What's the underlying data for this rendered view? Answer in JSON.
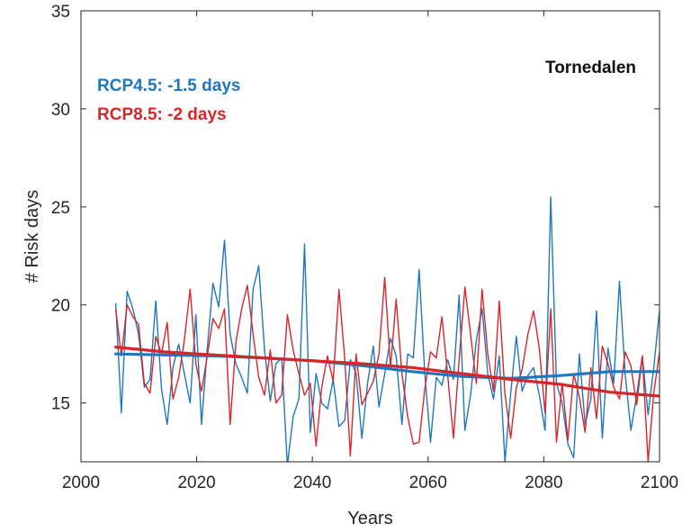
{
  "chart_data": {
    "type": "line",
    "title": "",
    "xlabel": "Years",
    "ylabel": "# Risk days",
    "xlim": [
      2000,
      2100
    ],
    "ylim": [
      12,
      35
    ],
    "xticks": [
      2000,
      2020,
      2040,
      2060,
      2080,
      2100
    ],
    "yticks": [
      15,
      20,
      25,
      30,
      35
    ],
    "grid": false,
    "x_start": 2006,
    "x_end": 2100,
    "annotations": {
      "region": "Tornedalen",
      "rcp45_label": "RCP4.5: -1.5 days",
      "rcp85_label": "RCP8.5: -2 days"
    },
    "colors": {
      "rcp45": "#1f77c0",
      "rcp85": "#d62728",
      "axis": "#262626"
    },
    "series": [
      {
        "key": "rcp45",
        "values": [
          20.1,
          14.5,
          20.7,
          19.8,
          18.5,
          15.8,
          16.2,
          20.2,
          15.7,
          13.9,
          16.8,
          18.0,
          16.5,
          15.0,
          19.5,
          13.9,
          17.8,
          21.1,
          19.9,
          23.3,
          18.5,
          17.0,
          16.3,
          15.5,
          20.8,
          22.0,
          17.7,
          15.1,
          17.0,
          17.3,
          11.8,
          14.3,
          15.2,
          23.1,
          13.5,
          16.5,
          15.0,
          14.7,
          16.2,
          13.8,
          14.1,
          17.2,
          16.5,
          13.2,
          16.0,
          17.9,
          14.8,
          16.5,
          18.3,
          17.4,
          13.9,
          17.5,
          17.3,
          21.8,
          16.5,
          13.0,
          16.3,
          15.9,
          17.2,
          16.2,
          20.5,
          13.6,
          15.4,
          18.2,
          19.8,
          16.5,
          15.2,
          17.4,
          12.0,
          15.5,
          18.4,
          15.6,
          16.4,
          16.8,
          15.4,
          13.6,
          25.5,
          16.0,
          15.0,
          12.9,
          12.2,
          17.5,
          13.9,
          15.2,
          19.7,
          13.2,
          17.8,
          16.0,
          21.2,
          16.5,
          13.6,
          15.4,
          17.4,
          14.4,
          16.8,
          19.7
        ],
        "trend": [
          17.5,
          17.45,
          17.4,
          17.3,
          17.15,
          16.9,
          16.6,
          16.35,
          16.25,
          16.4,
          16.6,
          16.6
        ]
      },
      {
        "key": "rcp85",
        "values": [
          19.8,
          17.4,
          20.0,
          19.4,
          19.0,
          16.0,
          15.5,
          18.4,
          17.5,
          19.1,
          15.2,
          16.3,
          18.2,
          20.8,
          17.0,
          15.6,
          17.4,
          19.3,
          18.8,
          19.8,
          13.9,
          18.1,
          19.8,
          21.0,
          18.5,
          16.3,
          15.4,
          17.7,
          15.0,
          15.4,
          19.5,
          17.7,
          16.5,
          15.4,
          16.0,
          12.8,
          15.8,
          17.4,
          16.1,
          20.8,
          17.3,
          12.3,
          17.5,
          14.9,
          15.5,
          16.1,
          17.5,
          21.4,
          16.8,
          20.3,
          16.5,
          14.3,
          12.9,
          13.0,
          15.7,
          17.6,
          17.3,
          19.4,
          16.4,
          13.2,
          17.2,
          20.9,
          18.5,
          16.0,
          20.8,
          17.5,
          15.6,
          20.2,
          15.5,
          13.2,
          15.8,
          16.7,
          18.5,
          19.7,
          17.8,
          14.5,
          19.8,
          13.0,
          16.0,
          13.1,
          16.5,
          15.3,
          13.5,
          16.8,
          14.2,
          17.9,
          17.0,
          15.8,
          15.2,
          17.6,
          16.9,
          14.9,
          17.4,
          12.0,
          15.5,
          17.6
        ],
        "trend": [
          17.85,
          17.6,
          17.45,
          17.3,
          17.15,
          17.0,
          16.8,
          16.5,
          16.2,
          15.95,
          15.55,
          15.35
        ]
      }
    ]
  }
}
